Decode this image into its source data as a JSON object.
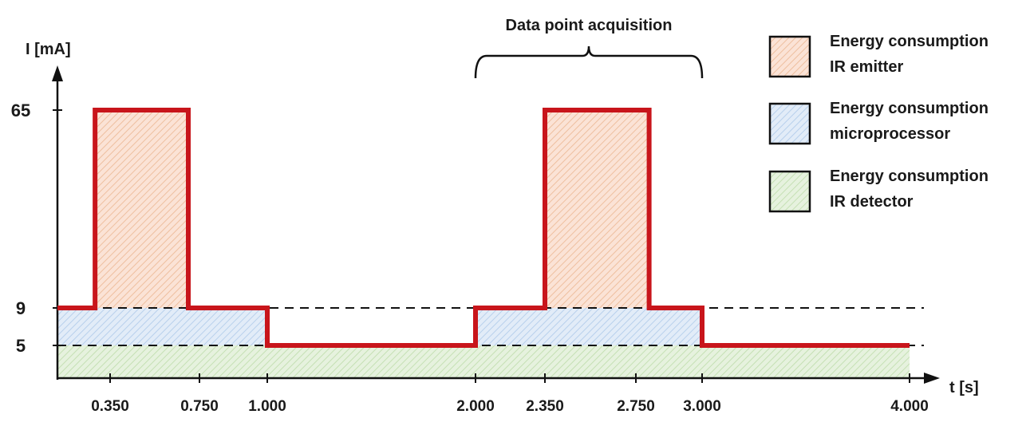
{
  "chart_data": {
    "type": "area",
    "xlabel": "t [s]",
    "ylabel": "I [mA]",
    "x_ticks": [
      "0.350",
      "0.750",
      "1.000",
      "2.000",
      "2.350",
      "2.750",
      "3.000",
      "4.000"
    ],
    "y_ticks": [
      "5",
      "9",
      "65"
    ],
    "xlim": [
      0,
      4.1
    ],
    "reference_lines": [
      5,
      9
    ],
    "series": [
      {
        "name": "Current",
        "color": "#c8151b",
        "x": [
          0,
          0.25,
          0.25,
          0.7,
          0.7,
          1.0,
          1.0,
          2.0,
          2.0,
          2.35,
          2.35,
          2.8,
          2.8,
          3.0,
          3.0,
          4.0
        ],
        "y": [
          9,
          9,
          65,
          65,
          9,
          9,
          5,
          5,
          9,
          9,
          65,
          65,
          9,
          9,
          5,
          5
        ]
      }
    ],
    "regions": [
      {
        "legend_index": 0,
        "x_start": 0.25,
        "x_end": 0.7,
        "y_low": 9,
        "y_high": 65
      },
      {
        "legend_index": 0,
        "x_start": 2.35,
        "x_end": 2.8,
        "y_low": 9,
        "y_high": 65
      },
      {
        "legend_index": 1,
        "x_start": 0.0,
        "x_end": 1.0,
        "y_low": 5,
        "y_high": 9
      },
      {
        "legend_index": 1,
        "x_start": 2.0,
        "x_end": 3.0,
        "y_low": 5,
        "y_high": 9
      },
      {
        "legend_index": 2,
        "x_start": 0.0,
        "x_end": 4.0,
        "y_low": 0,
        "y_high": 5
      }
    ],
    "annotation": {
      "text": "Data point acquisition",
      "x_start": 2.0,
      "x_end": 3.0
    },
    "legend": {
      "placement": "right",
      "entries": [
        {
          "line1": "Energy consumption",
          "line2": "IR emitter",
          "color": "#f6d3bd"
        },
        {
          "line1": "Energy consumption",
          "line2": "microprocessor",
          "color": "#c8dcf1"
        },
        {
          "line1": "Energy consumption",
          "line2": "IR detector",
          "color": "#cfe7c2"
        }
      ]
    },
    "grid": false
  }
}
